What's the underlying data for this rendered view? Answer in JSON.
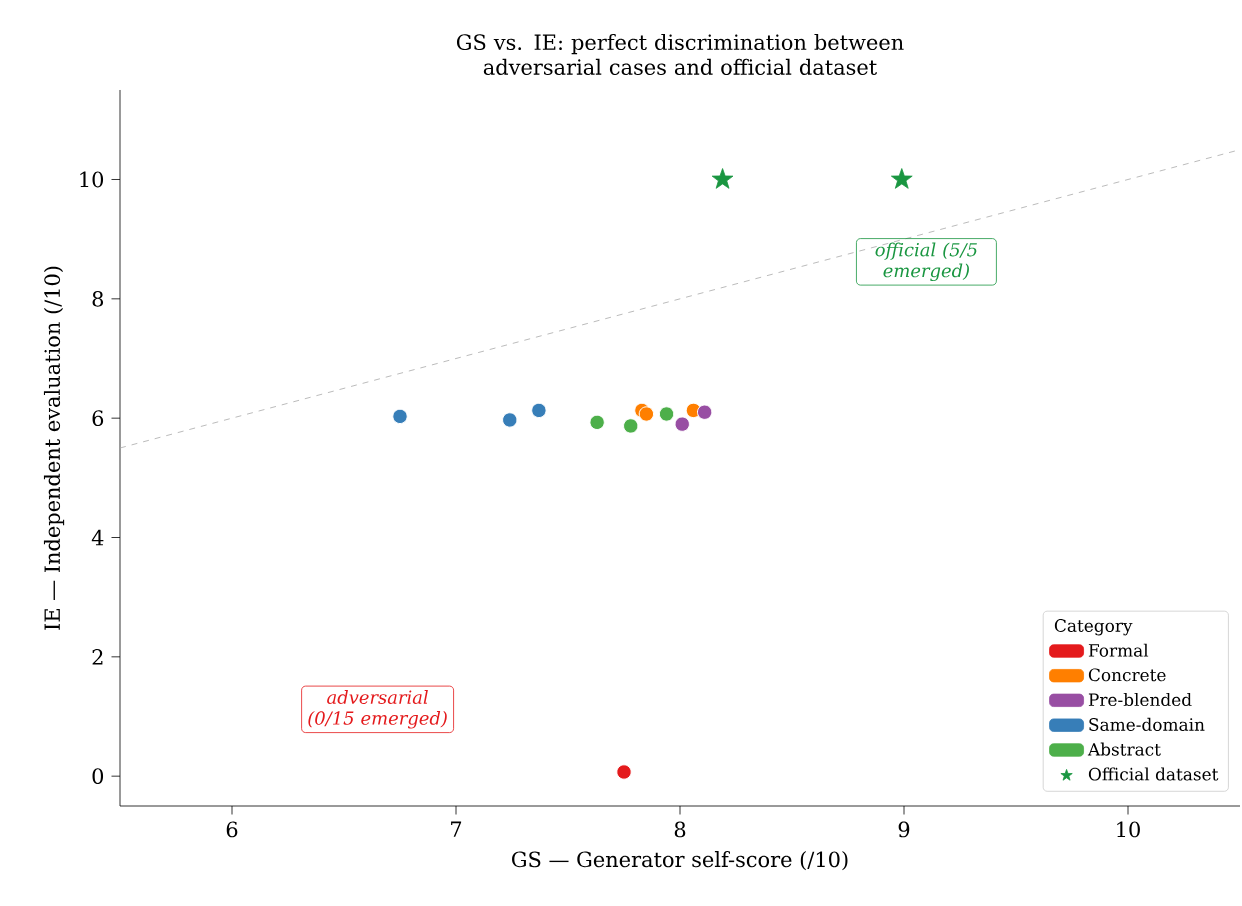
{
  "chart_data": {
    "type": "scatter",
    "title": "GS vs. IE: perfect discrimination between adversarial cases and official dataset",
    "xlabel": "GS — Generator self-score (/10)",
    "ylabel": "IE — Independent evaluation (/10)",
    "legend_title": "Category",
    "xlim": [
      5.5,
      10.5
    ],
    "ylim": [
      -0.5,
      11.5
    ],
    "xticks": [
      6,
      7,
      8,
      9,
      10
    ],
    "yticks": [
      0,
      2,
      4,
      6,
      8,
      10
    ],
    "marker": "circle",
    "legend": "bottom right",
    "grid": false,
    "series": [
      {
        "type": "line",
        "x": [
          5.5,
          10.5
        ],
        "values": [
          5.5,
          10.5
        ],
        "color": "#aaaaaa",
        "line_style": "dashed",
        "marker": "none"
      },
      {
        "name": "Formal",
        "color": "#e41a1c",
        "x": [
          7.75
        ],
        "values": [
          0.07
        ]
      },
      {
        "name": "Concrete",
        "color": "#ff7f00",
        "x": [
          7.83,
          7.85,
          8.06
        ],
        "values": [
          6.13,
          6.07,
          6.13
        ]
      },
      {
        "name": "Pre-blended",
        "color": "#984ea3",
        "x": [
          8.01,
          8.11
        ],
        "values": [
          5.9,
          6.1
        ]
      },
      {
        "name": "Same-domain",
        "color": "#377eb8",
        "x": [
          6.75,
          7.24,
          7.37
        ],
        "values": [
          6.03,
          5.97,
          6.13
        ]
      },
      {
        "name": "Abstract",
        "color": "#4daf4a",
        "x": [
          7.63,
          7.78,
          7.94
        ],
        "values": [
          5.93,
          5.87,
          6.07
        ]
      },
      {
        "name": "Official dataset",
        "color": "#1a9641",
        "marker": "star",
        "x": [
          8.19,
          8.99
        ],
        "values": [
          10,
          10
        ]
      }
    ],
    "annotations": [
      "adversarial (0/15 emerged)",
      "official (5/5 emerged)"
    ]
  }
}
